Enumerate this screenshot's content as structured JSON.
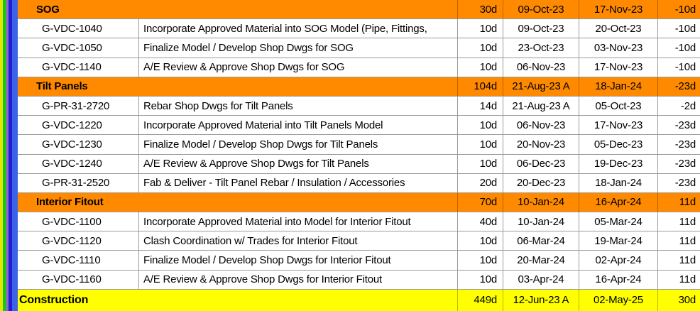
{
  "colors": {
    "summary_orange": "#ff8a00",
    "summary_yellow": "#ffff00",
    "detail_bg": "#ffffff"
  },
  "sections": [
    {
      "title": "SOG",
      "duration": "30d",
      "start": "09-Oct-23",
      "finish": "17-Nov-23",
      "float": "-10d",
      "activities": [
        {
          "id": "G-VDC-1040",
          "name": "Incorporate Approved Material into SOG Model (Pipe, Fittings,",
          "duration": "10d",
          "start": "09-Oct-23",
          "finish": "20-Oct-23",
          "float": "-10d"
        },
        {
          "id": "G-VDC-1050",
          "name": "Finalize Model / Develop Shop Dwgs for SOG",
          "duration": "10d",
          "start": "23-Oct-23",
          "finish": "03-Nov-23",
          "float": "-10d"
        },
        {
          "id": "G-VDC-1140",
          "name": "A/E Review & Approve Shop Dwgs for SOG",
          "duration": "10d",
          "start": "06-Nov-23",
          "finish": "17-Nov-23",
          "float": "-10d"
        }
      ]
    },
    {
      "title": "Tilt Panels",
      "duration": "104d",
      "start": "21-Aug-23 A",
      "finish": "18-Jan-24",
      "float": "-23d",
      "activities": [
        {
          "id": "G-PR-31-2720",
          "name": "Rebar Shop Dwgs for Tilt Panels",
          "duration": "14d",
          "start": "21-Aug-23 A",
          "finish": "05-Oct-23",
          "float": "-2d"
        },
        {
          "id": "G-VDC-1220",
          "name": "Incorporate Approved Material into Tilt Panels Model",
          "duration": "10d",
          "start": "06-Nov-23",
          "finish": "17-Nov-23",
          "float": "-23d"
        },
        {
          "id": "G-VDC-1230",
          "name": "Finalize Model / Develop Shop Dwgs for Tilt Panels",
          "duration": "10d",
          "start": "20-Nov-23",
          "finish": "05-Dec-23",
          "float": "-23d"
        },
        {
          "id": "G-VDC-1240",
          "name": "A/E Review & Approve Shop Dwgs for Tilt Panels",
          "duration": "10d",
          "start": "06-Dec-23",
          "finish": "19-Dec-23",
          "float": "-23d"
        },
        {
          "id": "G-PR-31-2520",
          "name": "Fab & Deliver - Tilt Panel Rebar / Insulation / Accessories",
          "duration": "20d",
          "start": "20-Dec-23",
          "finish": "18-Jan-24",
          "float": "-23d"
        }
      ]
    },
    {
      "title": "Interior Fitout",
      "duration": "70d",
      "start": "10-Jan-24",
      "finish": "16-Apr-24",
      "float": "11d",
      "activities": [
        {
          "id": "G-VDC-1100",
          "name": "Incorporate Approved Material into Model for Interior Fitout",
          "duration": "40d",
          "start": "10-Jan-24",
          "finish": "05-Mar-24",
          "float": "11d"
        },
        {
          "id": "G-VDC-1120",
          "name": "Clash Coordination w/ Trades for Interior Fitout",
          "duration": "10d",
          "start": "06-Mar-24",
          "finish": "19-Mar-24",
          "float": "11d"
        },
        {
          "id": "G-VDC-1110",
          "name": "Finalize Model / Develop Shop Dwgs for Interior Fitout",
          "duration": "10d",
          "start": "20-Mar-24",
          "finish": "02-Apr-24",
          "float": "11d"
        },
        {
          "id": "G-VDC-1160",
          "name": "A/E Review & Approve Shop Dwgs for Interior Fitout",
          "duration": "10d",
          "start": "03-Apr-24",
          "finish": "16-Apr-24",
          "float": "11d"
        }
      ]
    }
  ],
  "top_summary": {
    "title": "Construction",
    "duration": "449d",
    "start": "12-Jun-23 A",
    "finish": "02-May-25",
    "float": "30d"
  }
}
